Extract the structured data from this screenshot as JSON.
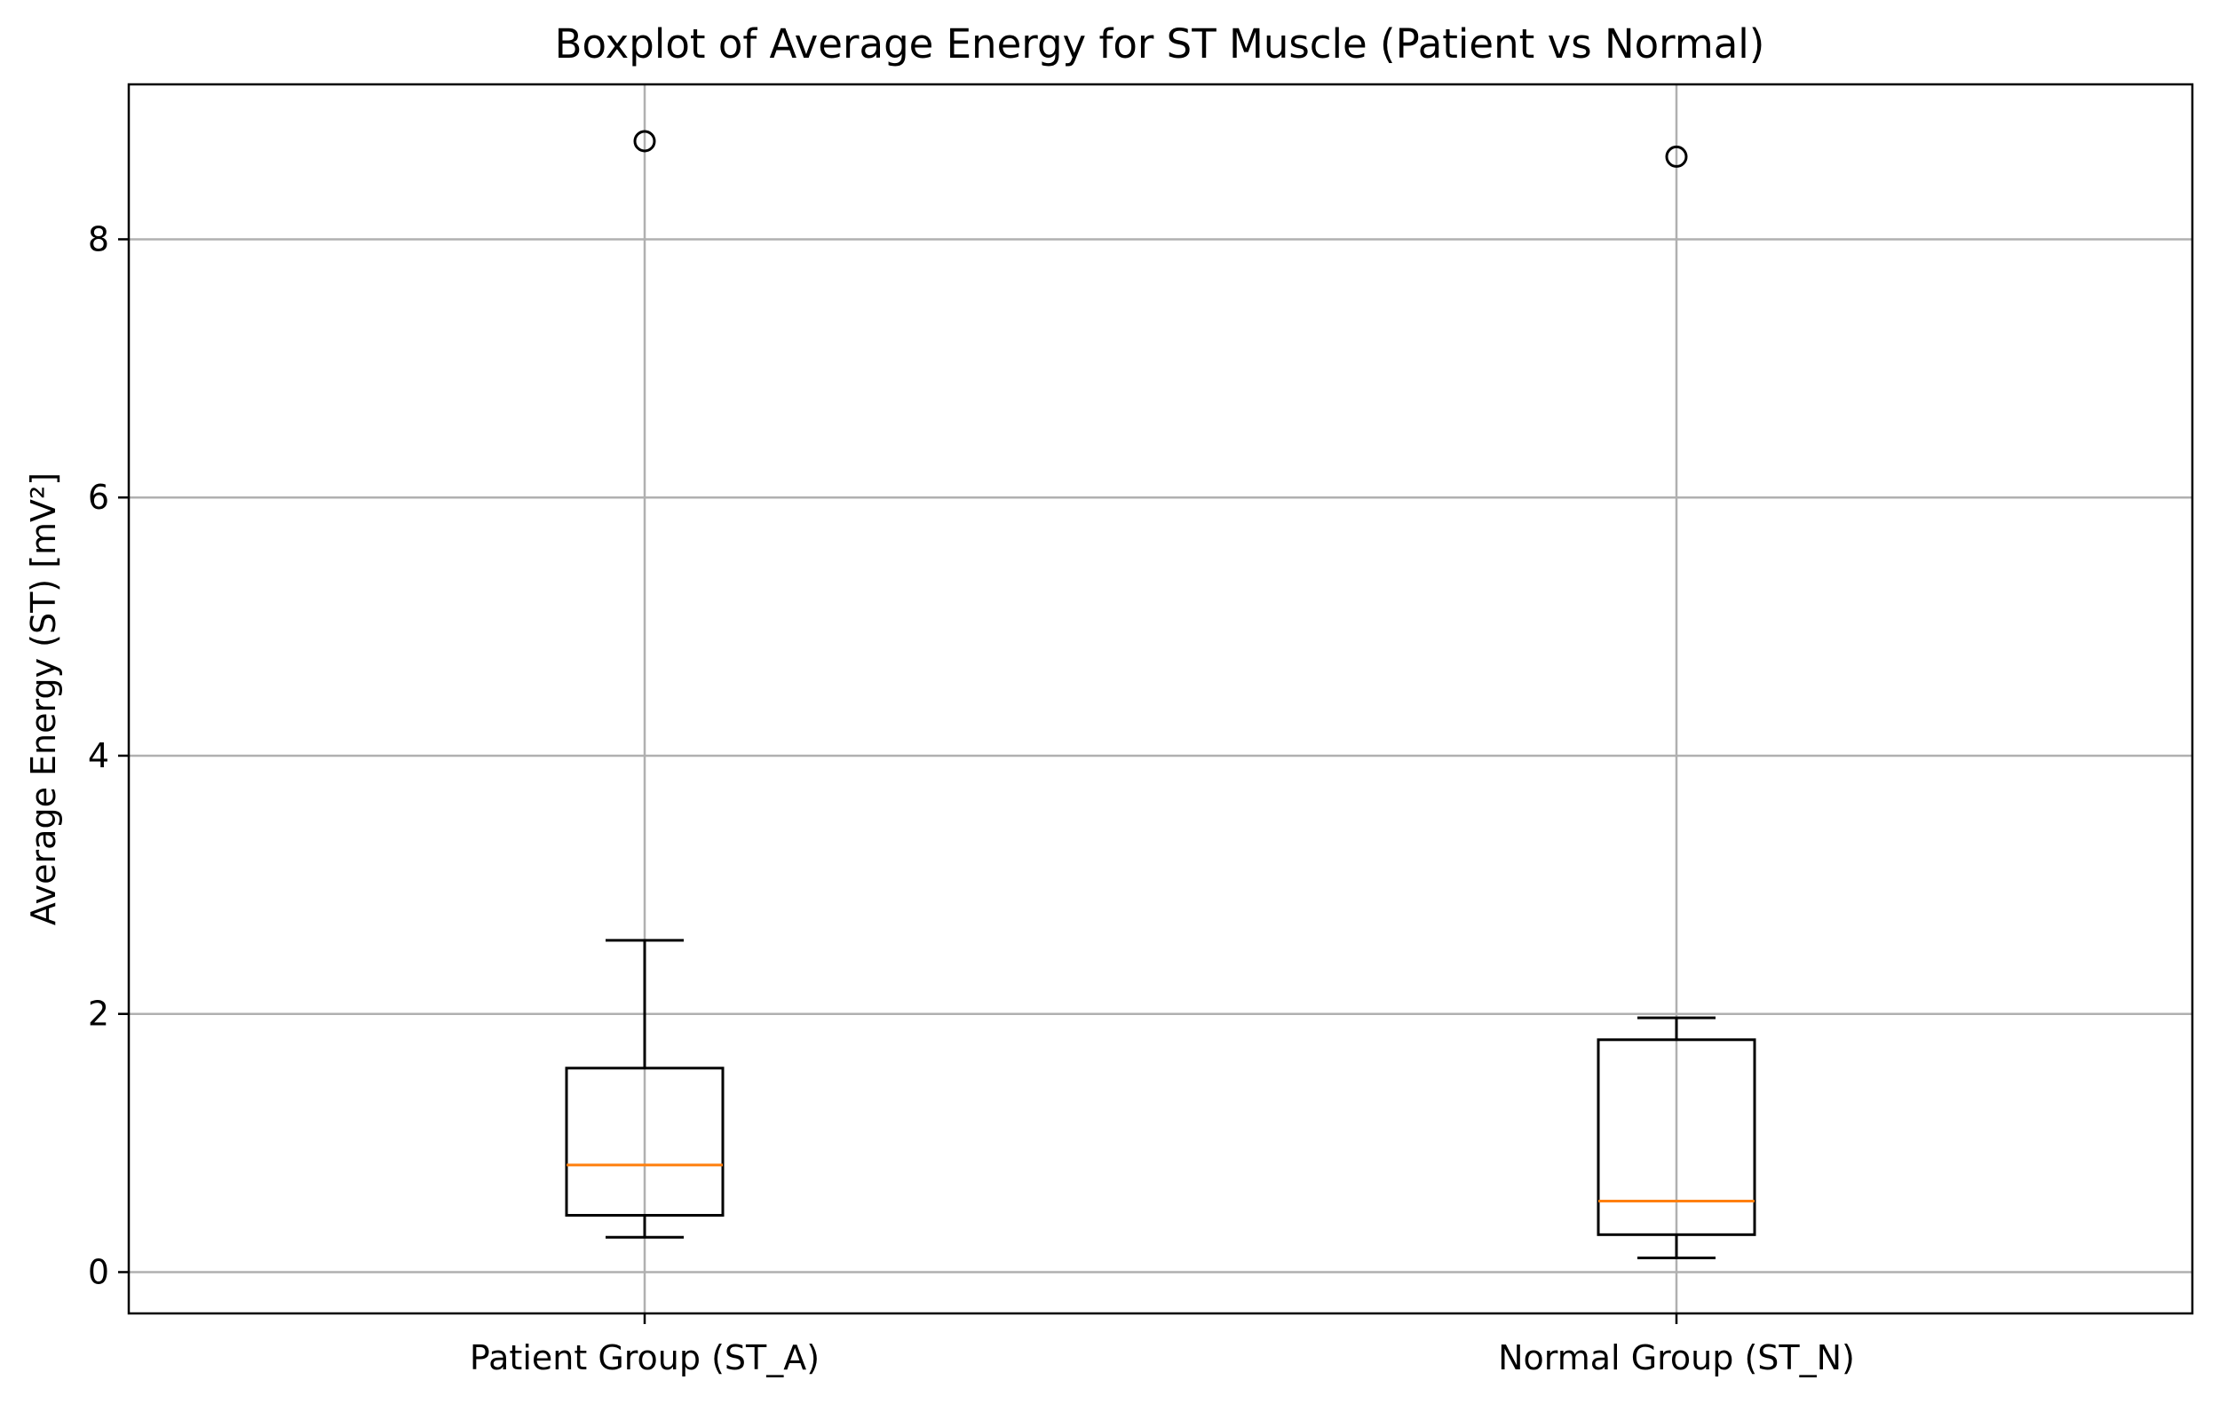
{
  "chart_data": {
    "type": "boxplot",
    "title": "Boxplot of Average Energy for ST Muscle (Patient vs Normal)",
    "xlabel": "",
    "ylabel": "Average Energy (ST) [mV²]",
    "ylim": [
      -0.32,
      9.2
    ],
    "yticks": [
      0,
      2,
      4,
      6,
      8
    ],
    "grid": true,
    "categories": [
      "Patient Group (ST_A)",
      "Normal Group (ST_N)"
    ],
    "boxes": [
      {
        "label": "Patient Group (ST_A)",
        "whisker_low": 0.27,
        "q1": 0.44,
        "median": 0.83,
        "q3": 1.58,
        "whisker_high": 2.57,
        "outliers": [
          8.76
        ]
      },
      {
        "label": "Normal Group (ST_N)",
        "whisker_low": 0.11,
        "q1": 0.29,
        "median": 0.55,
        "q3": 1.8,
        "whisker_high": 1.97,
        "outliers": [
          8.64
        ]
      }
    ],
    "colors": {
      "box": "#000000",
      "median": "#ff7f0e",
      "grid": "#b0b0b0"
    }
  }
}
